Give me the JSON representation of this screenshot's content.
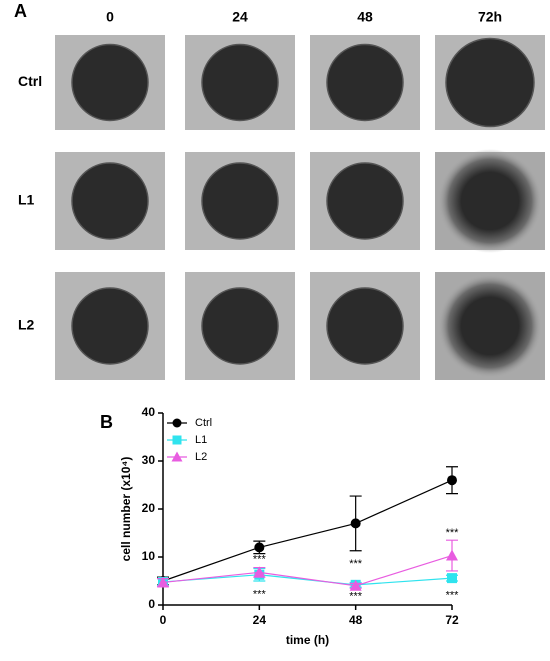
{
  "panel_a": {
    "label": "A",
    "columns": [
      "0",
      "24",
      "48",
      "72h"
    ],
    "rows": [
      "Ctrl",
      "L1",
      "L2"
    ]
  },
  "chart_data": {
    "type": "line",
    "panel_label": "B",
    "x": [
      0,
      24,
      48,
      72
    ],
    "xlabel": "time (h)",
    "ylabel": "cell number (x10⁴)",
    "xlim": [
      0,
      72
    ],
    "xticks": [
      0,
      24,
      48,
      72
    ],
    "ylim": [
      0,
      40
    ],
    "yticks": [
      0,
      10,
      20,
      30,
      40
    ],
    "legend": "upper left",
    "series": [
      {
        "name": "Ctrl",
        "color": "#000000",
        "marker": "circle",
        "values": [
          5,
          12,
          17,
          26
        ],
        "errors": [
          0.8,
          1.3,
          5.7,
          2.8
        ]
      },
      {
        "name": "L1",
        "color": "#2fe3ee",
        "marker": "square",
        "values": [
          4.8,
          6.3,
          4.2,
          5.6
        ],
        "errors": [
          0.7,
          1.3,
          0.5,
          0.6
        ]
      },
      {
        "name": "L2",
        "color": "#e85ce0",
        "marker": "triangle",
        "values": [
          4.7,
          6.8,
          4.0,
          10.3
        ],
        "errors": [
          0.8,
          1.0,
          0.5,
          3.2
        ]
      }
    ],
    "annotations": [
      {
        "text": "***",
        "x": 24,
        "y": 9.5
      },
      {
        "text": "***",
        "x": 24,
        "y": 2.2
      },
      {
        "text": "***",
        "x": 48,
        "y": 8.5
      },
      {
        "text": "***",
        "x": 48,
        "y": 1.8
      },
      {
        "text": "***",
        "x": 72,
        "y": 15
      },
      {
        "text": "***",
        "x": 72,
        "y": 2
      }
    ]
  }
}
